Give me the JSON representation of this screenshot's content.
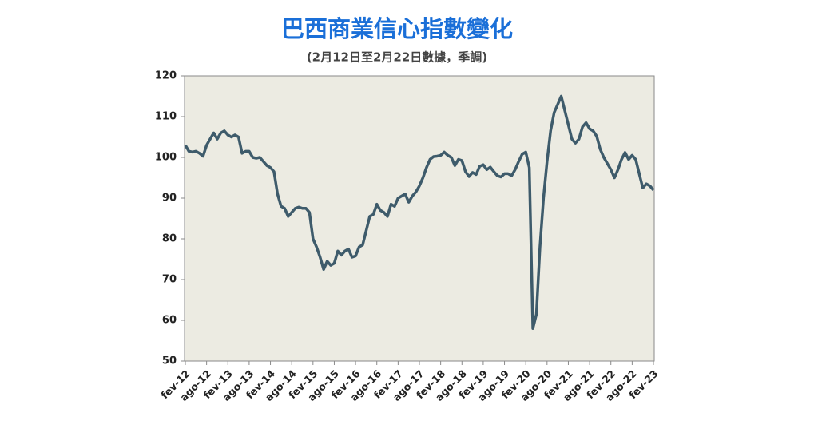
{
  "chart_data": {
    "type": "line",
    "title": "巴西商業信心指數變化",
    "subtitle": "(2月12日至2月22日數據，季調)",
    "categories": [
      "fev-12",
      null,
      null,
      null,
      null,
      null,
      "ago-12",
      null,
      null,
      null,
      null,
      null,
      "fev-13",
      null,
      null,
      null,
      null,
      null,
      "ago-13",
      null,
      null,
      null,
      null,
      null,
      "fev-14",
      null,
      null,
      null,
      null,
      null,
      "ago-14",
      null,
      null,
      null,
      null,
      null,
      "fev-15",
      null,
      null,
      null,
      null,
      null,
      "ago-15",
      null,
      null,
      null,
      null,
      null,
      "fev-16",
      null,
      null,
      null,
      null,
      null,
      "ago-16",
      null,
      null,
      null,
      null,
      null,
      "fev-17",
      null,
      null,
      null,
      null,
      null,
      "ago-17",
      null,
      null,
      null,
      null,
      null,
      "fev-18",
      null,
      null,
      null,
      null,
      null,
      "ago-18",
      null,
      null,
      null,
      null,
      null,
      "fev-19",
      null,
      null,
      null,
      null,
      null,
      "ago-19",
      null,
      null,
      null,
      null,
      null,
      "fev-20",
      null,
      null,
      null,
      null,
      null,
      "ago-20",
      null,
      null,
      null,
      null,
      null,
      "fev-21",
      null,
      null,
      null,
      null,
      null,
      "ago-21",
      null,
      null,
      null,
      null,
      null,
      "fev-22",
      null,
      null,
      null,
      null,
      null,
      "ago-22",
      null,
      null,
      null,
      null,
      null,
      "fev-23"
    ],
    "values": [
      103,
      101.5,
      101.3,
      101.5,
      101,
      100.3,
      103,
      104.5,
      106,
      104.5,
      106,
      106.5,
      105.5,
      105,
      105.5,
      105,
      101,
      101.5,
      101.5,
      100,
      99.8,
      100,
      99,
      98,
      97.5,
      96.5,
      91,
      88,
      87.5,
      85.5,
      86.5,
      87.5,
      87.8,
      87.5,
      87.5,
      86.5,
      80,
      78,
      75.5,
      72.5,
      74.5,
      73.5,
      74,
      77,
      76,
      77,
      77.5,
      75.5,
      75.8,
      78,
      78.5,
      82,
      85.5,
      86,
      88.5,
      87,
      86.5,
      85.5,
      88.5,
      88,
      90,
      90.5,
      91,
      89,
      90.5,
      91.5,
      93,
      95,
      97.5,
      99.5,
      100.2,
      100.3,
      100.5,
      101.3,
      100.5,
      100,
      98,
      99.5,
      99.2,
      96.5,
      95.3,
      96.3,
      95.8,
      97.8,
      98.2,
      97,
      97.6,
      96.5,
      95.5,
      95.2,
      96,
      96,
      95.5,
      97,
      99,
      100.8,
      101.3,
      97.5,
      58,
      61.5,
      78,
      90,
      99,
      106.5,
      111,
      113,
      115,
      111.5,
      108,
      104.5,
      103.5,
      104.5,
      107.5,
      108.5,
      107,
      106.5,
      105.2,
      102,
      100,
      98.5,
      97,
      95,
      97,
      99.5,
      101.2,
      99.5,
      100.5,
      99.5,
      96,
      92.5,
      93.5,
      93,
      92
    ],
    "color": "#3e5b6b",
    "plot_background": "#ecebe2",
    "ylim": [
      50,
      120
    ],
    "yticks": [
      50,
      60,
      70,
      80,
      90,
      100,
      110,
      120
    ],
    "grid": false
  }
}
